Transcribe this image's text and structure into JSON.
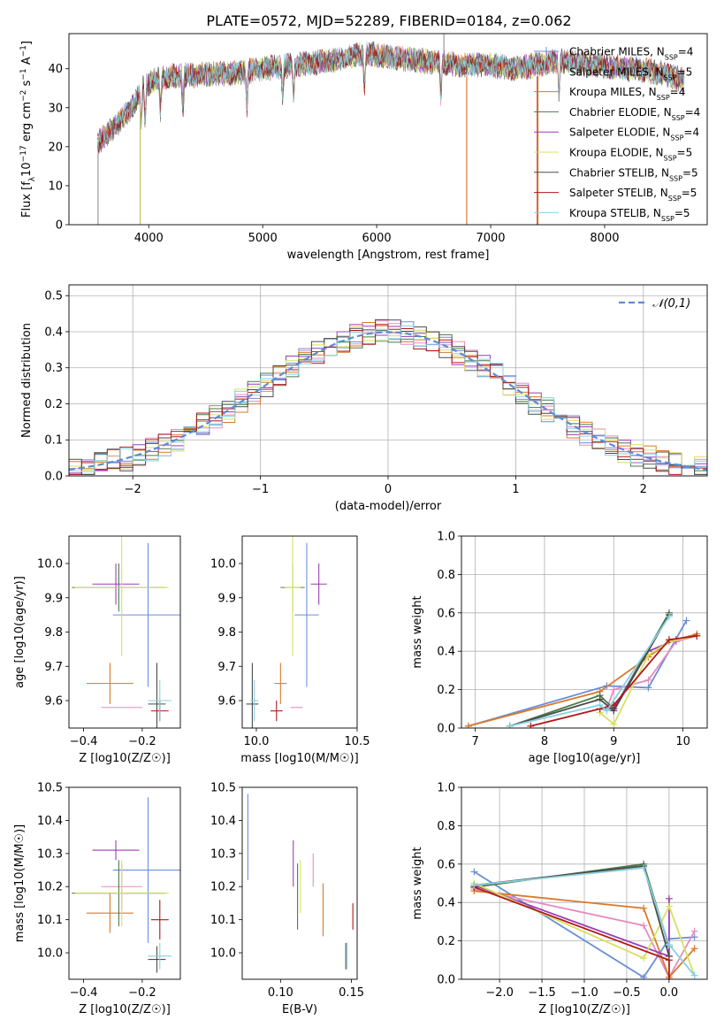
{
  "title": "PLATE=0572, MJD=52289, FIBERID=0184, z=0.062",
  "colors": [
    "#6a8fd8",
    "#e58cc0",
    "#d97a2b",
    "#4a7a4a",
    "#9b3fb5",
    "#d8e060",
    "#4a4a4a",
    "#b01818",
    "#8ad0e0"
  ],
  "legend": [
    "Chabrier MILES, N_SSP=4",
    "Salpeter MILES, N_SSP=5",
    "Kroupa MILES, N_SSP=4",
    "Chabrier ELODIE, N_SSP=4",
    "Salpeter ELODIE, N_SSP=4",
    "Kroupa ELODIE, N_SSP=5",
    "Chabrier STELIB, N_SSP=5",
    "Salpeter STELIB, N_SSP=5",
    "Kroupa STELIB, N_SSP=5"
  ],
  "chart_data": [
    {
      "id": "spectrum",
      "type": "line",
      "xlabel": "wavelength [Angstrom, rest frame]",
      "ylabel": "Flux [f_λ 10^-17 erg cm^-2 s^-1 A^-1]",
      "xlim": [
        3300,
        8900
      ],
      "ylim": [
        0,
        49
      ],
      "xticks": [
        4000,
        5000,
        6000,
        7000,
        8000
      ],
      "yticks": [
        0,
        10,
        20,
        30,
        40
      ],
      "continuum": [
        [
          3550,
          21
        ],
        [
          3700,
          25
        ],
        [
          3850,
          30
        ],
        [
          3950,
          35
        ],
        [
          4050,
          37
        ],
        [
          4200,
          38
        ],
        [
          4500,
          38.5
        ],
        [
          4800,
          39
        ],
        [
          5000,
          40
        ],
        [
          5300,
          41
        ],
        [
          5600,
          42
        ],
        [
          5900,
          44
        ],
        [
          6100,
          43
        ],
        [
          6400,
          42
        ],
        [
          6700,
          41
        ],
        [
          7000,
          41
        ],
        [
          7200,
          40
        ],
        [
          7400,
          41
        ],
        [
          7600,
          42
        ],
        [
          7900,
          41
        ],
        [
          8200,
          40
        ],
        [
          8500,
          39
        ],
        [
          8700,
          37
        ]
      ],
      "absorption_lines": [
        3933,
        3968,
        4102,
        4300,
        4861,
        5175,
        5270,
        5893,
        6563,
        7600
      ]
    },
    {
      "id": "residuals",
      "type": "histogram",
      "xlabel": "(data-model)/error",
      "ylabel": "Normed distribution",
      "xlim": [
        -2.5,
        2.5
      ],
      "ylim": [
        0,
        0.53
      ],
      "xticks": [
        -2,
        -1,
        0,
        1,
        2
      ],
      "yticks": [
        0.0,
        0.1,
        0.2,
        0.3,
        0.4,
        0.5
      ],
      "legend": "N(0,1)"
    },
    {
      "id": "z-age",
      "type": "errorbar",
      "xlabel": "Z [log10(Z/Z☉)]",
      "ylabel": "age [log10(age/yr)]",
      "xlim": [
        -0.45,
        -0.07
      ],
      "ylim": [
        9.52,
        10.08
      ],
      "xticks": [
        -0.4,
        -0.2
      ],
      "yticks": [
        9.6,
        9.7,
        9.8,
        9.9,
        10.0
      ],
      "points": [
        {
          "x": -0.18,
          "xerr": 0.12,
          "y": 9.85,
          "yerr": 0.21
        },
        {
          "x": -0.27,
          "xerr": 0.07,
          "y": 9.58,
          "yerr": 0.0
        },
        {
          "x": -0.31,
          "xerr": 0.08,
          "y": 9.65,
          "yerr": 0.06
        },
        {
          "x": -0.28,
          "xerr": 0.16,
          "y": 9.93,
          "yerr": 0.07
        },
        {
          "x": -0.29,
          "xerr": 0.08,
          "y": 9.94,
          "yerr": 0.06
        },
        {
          "x": -0.27,
          "xerr": 0.16,
          "y": 9.93,
          "yerr": 0.2
        },
        {
          "x": -0.15,
          "xerr": 0.03,
          "y": 9.59,
          "yerr": 0.12
        },
        {
          "x": -0.14,
          "xerr": 0.03,
          "y": 9.57,
          "yerr": 0.03
        },
        {
          "x": -0.14,
          "xerr": 0.04,
          "y": 9.6,
          "yerr": 0.06
        }
      ]
    },
    {
      "id": "mass-age",
      "type": "errorbar",
      "xlabel": "mass [log10(M/M☉)]",
      "ylabel": "",
      "xlim": [
        9.93,
        10.5
      ],
      "ylim": [
        9.52,
        10.08
      ],
      "xticks": [
        10.0,
        10.5
      ],
      "yticks": [
        9.6,
        9.7,
        9.8,
        9.9,
        10.0
      ],
      "points": [
        {
          "x": 10.25,
          "xerr": 0.06,
          "y": 9.85,
          "yerr": 0.21
        },
        {
          "x": 10.2,
          "xerr": 0.03,
          "y": 9.58,
          "yerr": 0.0
        },
        {
          "x": 10.12,
          "xerr": 0.03,
          "y": 9.65,
          "yerr": 0.06
        },
        {
          "x": 10.18,
          "xerr": 0.06,
          "y": 9.93,
          "yerr": 0.07
        },
        {
          "x": 10.31,
          "xerr": 0.04,
          "y": 9.94,
          "yerr": 0.06
        },
        {
          "x": 10.18,
          "xerr": 0.04,
          "y": 9.93,
          "yerr": 0.2
        },
        {
          "x": 9.98,
          "xerr": 0.03,
          "y": 9.59,
          "yerr": 0.12
        },
        {
          "x": 10.1,
          "xerr": 0.03,
          "y": 9.57,
          "yerr": 0.03
        },
        {
          "x": 9.99,
          "xerr": 0.02,
          "y": 9.6,
          "yerr": 0.06
        }
      ]
    },
    {
      "id": "age-weight",
      "type": "line",
      "xlabel": "age [log10(age/yr)]",
      "ylabel": "mass weight",
      "xlim": [
        6.8,
        10.35
      ],
      "ylim": [
        0,
        1
      ],
      "xticks": [
        7,
        8,
        9,
        10
      ],
      "yticks": [
        0.0,
        0.2,
        0.4,
        0.6,
        0.8,
        1.0
      ],
      "series": [
        {
          "x": [
            6.9,
            8.9,
            9.5,
            10.05
          ],
          "y": [
            0.01,
            0.22,
            0.21,
            0.56
          ]
        },
        {
          "x": [
            8.9,
            9.0,
            9.5,
            9.9,
            10.2
          ],
          "y": [
            0.1,
            0.2,
            0.25,
            0.45,
            0.48
          ]
        },
        {
          "x": [
            6.9,
            8.8,
            9.5,
            9.8,
            10.2
          ],
          "y": [
            0.01,
            0.19,
            0.37,
            0.45,
            0.49
          ]
        },
        {
          "x": [
            7.5,
            8.8,
            9.0,
            9.8
          ],
          "y": [
            0.01,
            0.17,
            0.1,
            0.6
          ]
        },
        {
          "x": [
            8.8,
            9.0,
            9.5,
            9.9,
            10.2
          ],
          "y": [
            0.1,
            0.1,
            0.4,
            0.46,
            0.48
          ]
        },
        {
          "x": [
            8.8,
            9.0,
            9.5,
            9.8,
            10.2
          ],
          "y": [
            0.08,
            0.02,
            0.38,
            0.45,
            0.48
          ]
        },
        {
          "x": [
            7.5,
            8.8,
            9.0,
            9.8
          ],
          "y": [
            0.01,
            0.15,
            0.09,
            0.59
          ]
        },
        {
          "x": [
            7.8,
            8.8,
            9.0,
            9.8,
            10.2
          ],
          "y": [
            0.01,
            0.1,
            0.12,
            0.46,
            0.48
          ]
        },
        {
          "x": [
            7.5,
            8.8,
            8.9,
            9.8
          ],
          "y": [
            0.01,
            0.12,
            0.09,
            0.58
          ]
        }
      ]
    },
    {
      "id": "z-mass",
      "type": "errorbar",
      "xlabel": "Z [log10(Z/Z☉)]",
      "ylabel": "mass [log10(M/M☉)]",
      "xlim": [
        -0.45,
        -0.07
      ],
      "ylim": [
        9.92,
        10.5
      ],
      "xticks": [
        -0.4,
        -0.2
      ],
      "yticks": [
        10.0,
        10.1,
        10.2,
        10.3,
        10.4,
        10.5
      ],
      "points": [
        {
          "x": -0.18,
          "xerr": 0.12,
          "y": 10.25,
          "yerr": 0.22
        },
        {
          "x": -0.27,
          "xerr": 0.07,
          "y": 10.2,
          "yerr": 0.07
        },
        {
          "x": -0.31,
          "xerr": 0.08,
          "y": 10.12,
          "yerr": 0.06
        },
        {
          "x": -0.28,
          "xerr": 0.16,
          "y": 10.18,
          "yerr": 0.1
        },
        {
          "x": -0.29,
          "xerr": 0.08,
          "y": 10.31,
          "yerr": 0.03
        },
        {
          "x": -0.27,
          "xerr": 0.16,
          "y": 10.18,
          "yerr": 0.1
        },
        {
          "x": -0.15,
          "xerr": 0.03,
          "y": 9.98,
          "yerr": 0.04
        },
        {
          "x": -0.14,
          "xerr": 0.03,
          "y": 10.1,
          "yerr": 0.06
        },
        {
          "x": -0.14,
          "xerr": 0.04,
          "y": 9.99,
          "yerr": 0.04
        }
      ]
    },
    {
      "id": "ebv-mass",
      "type": "errorbar",
      "xlabel": "E(B-V)",
      "ylabel": "",
      "xlim": [
        0.073,
        0.154
      ],
      "ylim": [
        9.92,
        10.5
      ],
      "xticks": [
        0.1,
        0.15
      ],
      "yticks": [
        10.0,
        10.1,
        10.2,
        10.3,
        10.4,
        10.5
      ],
      "points": [
        {
          "x": 0.077,
          "xerr": 0.0,
          "y": 10.35,
          "yerr": 0.13
        },
        {
          "x": 0.123,
          "xerr": 0.0,
          "y": 10.25,
          "yerr": 0.05
        },
        {
          "x": 0.13,
          "xerr": 0.0,
          "y": 10.13,
          "yerr": 0.08
        },
        {
          "x": 0.112,
          "xerr": 0.0,
          "y": 10.17,
          "yerr": 0.1
        },
        {
          "x": 0.109,
          "xerr": 0.0,
          "y": 10.27,
          "yerr": 0.07
        },
        {
          "x": 0.114,
          "xerr": 0.0,
          "y": 10.2,
          "yerr": 0.08
        },
        {
          "x": 0.146,
          "xerr": 0.0,
          "y": 9.99,
          "yerr": 0.04
        },
        {
          "x": 0.151,
          "xerr": 0.0,
          "y": 10.11,
          "yerr": 0.04
        },
        {
          "x": 0.147,
          "xerr": 0.0,
          "y": 9.99,
          "yerr": 0.04
        }
      ]
    },
    {
      "id": "z-weight",
      "type": "line",
      "xlabel": "Z [log10(Z/Z☉)]",
      "ylabel": "mass weight",
      "xlim": [
        -2.45,
        0.45
      ],
      "ylim": [
        0,
        1
      ],
      "xticks": [
        -2.0,
        -1.5,
        -1.0,
        -0.5,
        0.0
      ],
      "yticks": [
        0.0,
        0.2,
        0.4,
        0.6,
        0.8,
        1.0
      ],
      "series": [
        {
          "x": [
            -2.3,
            -0.3,
            0.0,
            0.3
          ],
          "y": [
            0.56,
            0.01,
            0.21,
            0.22
          ]
        },
        {
          "x": [
            -2.3,
            -0.3,
            0.0,
            0.3
          ],
          "y": [
            0.47,
            0.28,
            0.01,
            0.25
          ]
        },
        {
          "x": [
            -2.3,
            -0.3,
            0.0,
            0.3
          ],
          "y": [
            0.46,
            0.37,
            0.01,
            0.16
          ]
        },
        {
          "x": [
            -2.3,
            -0.3,
            0.0
          ],
          "y": [
            0.48,
            0.6,
            0.17
          ]
        },
        {
          "x": [
            -2.3,
            0.0,
            0.0
          ],
          "y": [
            0.49,
            0.12,
            0.42
          ]
        },
        {
          "x": [
            -2.3,
            -0.3,
            0.0,
            0.3
          ],
          "y": [
            0.5,
            0.11,
            0.38,
            0.02
          ]
        },
        {
          "x": [
            -2.3,
            -0.3,
            0.0
          ],
          "y": [
            0.49,
            0.59,
            0.12
          ]
        },
        {
          "x": [
            -2.3,
            0.0,
            0.0
          ],
          "y": [
            0.48,
            0.1,
            0.0
          ]
        },
        {
          "x": [
            -2.3,
            -0.3,
            0.0,
            0.3
          ],
          "y": [
            0.49,
            0.58,
            0.18,
            0.02
          ]
        }
      ]
    }
  ]
}
